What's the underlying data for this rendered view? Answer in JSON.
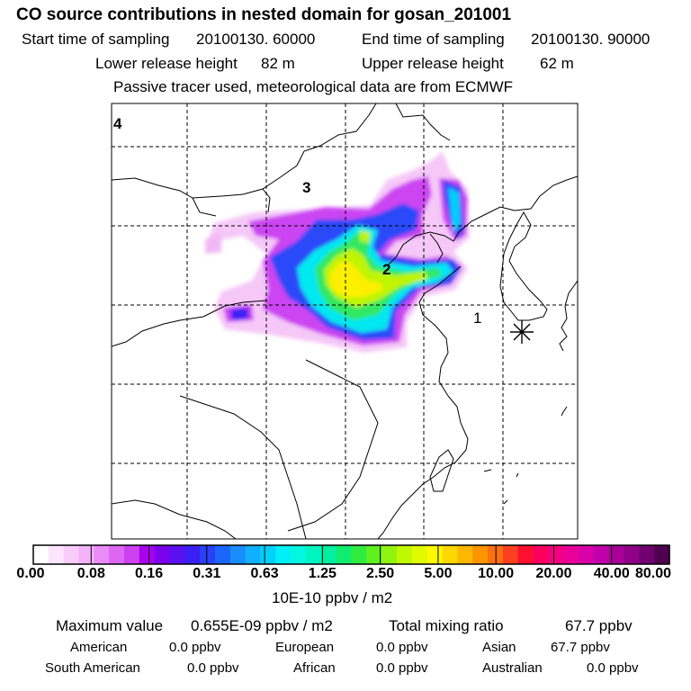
{
  "title": "CO  source contributions in nested domain for gosan_201001",
  "sampling": {
    "start_label": "Start time of sampling",
    "start_value": "20100130. 60000",
    "end_label": "End time of sampling",
    "end_value": "20100130. 90000"
  },
  "release": {
    "lower_label": "Lower release height",
    "lower_value": "82 m",
    "upper_label": "Upper release height",
    "upper_value": "62 m"
  },
  "note": "Passive tracer used, meteorological data are from ECMWF",
  "map_labels": {
    "region1": "1",
    "region2": "2",
    "region3": "3",
    "region4": "4"
  },
  "receptor": {
    "name": "gosan",
    "marker": "star-icon"
  },
  "colorbar": {
    "unit": "10E-10 ppbv / m2",
    "tick_labels": [
      "0.00",
      "0.08",
      "0.16",
      "0.31",
      "0.63",
      "1.25",
      "2.50",
      "5.00",
      "10.00",
      "20.00",
      "40.00",
      "80.00"
    ],
    "colors": [
      "#ffffff",
      "#fde6fd",
      "#f9ccfb",
      "#f3b2f9",
      "#e98cf6",
      "#dd66f3",
      "#cc40f0",
      "#aa00ee",
      "#7a00ee",
      "#5a10f0",
      "#3a20f4",
      "#2a40f8",
      "#1a66fa",
      "#1a8cfc",
      "#10b0fc",
      "#00d0fc",
      "#00f0f8",
      "#00f8e0",
      "#00f4c0",
      "#00f0a0",
      "#10ec70",
      "#30ec40",
      "#60f020",
      "#90f410",
      "#c0f800",
      "#e0fa00",
      "#fcf800",
      "#fcd800",
      "#fcb800",
      "#fc9400",
      "#fc7010",
      "#fc4020",
      "#fc1030",
      "#fc0060",
      "#f40080",
      "#e80098",
      "#d800a8",
      "#c000a8",
      "#a80098",
      "#900088",
      "#700070",
      "#500050"
    ]
  },
  "summary": {
    "max_label": "Maximum value",
    "max_value": "0.655E-09 ppbv / m2",
    "total_label": "Total mixing ratio",
    "total_value": "67.7 ppbv"
  },
  "regions": [
    {
      "name": "American",
      "value": "0.0 ppbv"
    },
    {
      "name": "European",
      "value": "0.0 ppbv"
    },
    {
      "name": "Asian",
      "value": "67.7 ppbv"
    },
    {
      "name": "South American",
      "value": "0.0 ppbv"
    },
    {
      "name": "African",
      "value": "0.0 ppbv"
    },
    {
      "name": "Australian",
      "value": "0.0 ppbv"
    }
  ]
}
